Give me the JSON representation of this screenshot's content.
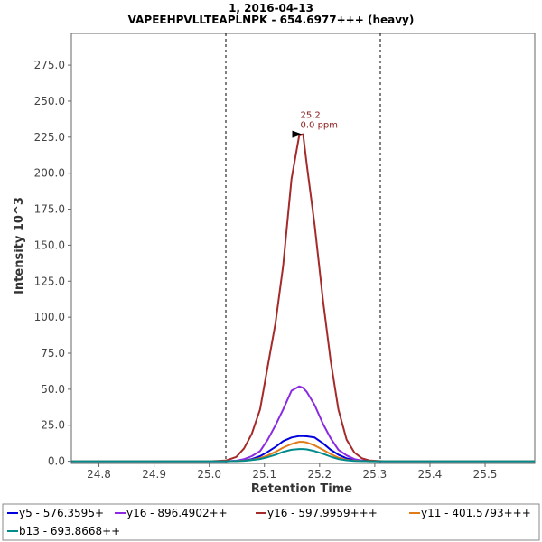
{
  "chart_data": {
    "type": "line",
    "title": "1, 2016-04-13",
    "subtitle": "VAPEEHPVLLTEAPLNPK - 654.6977+++ (heavy)",
    "xlabel": "Retention Time",
    "ylabel": "Intensity 10^3",
    "xlim": [
      24.75,
      25.59
    ],
    "ylim": [
      -1.5,
      297
    ],
    "x_ticks": [
      "24.8",
      "24.9",
      "25.0",
      "25.1",
      "25.2",
      "25.3",
      "25.4",
      "25.5"
    ],
    "x_tick_values": [
      24.8,
      24.9,
      25.0,
      25.1,
      25.2,
      25.3,
      25.4,
      25.5
    ],
    "y_ticks": [
      "0.0",
      "25.0",
      "50.0",
      "75.0",
      "100.0",
      "125.0",
      "150.0",
      "175.0",
      "200.0",
      "225.0",
      "250.0",
      "275.0"
    ],
    "y_tick_values": [
      0,
      25,
      50,
      75,
      100,
      125,
      150,
      175,
      200,
      225,
      250,
      275
    ],
    "grid": false,
    "legend_position": "bottom",
    "integration_bounds": [
      25.03,
      25.31
    ],
    "annotation": {
      "x": 25.17,
      "y": 227,
      "lines": [
        "25.2",
        "0.0 ppm"
      ],
      "color": "#8b1a1a"
    },
    "x": [
      24.75,
      24.8,
      24.85,
      24.9,
      24.95,
      25.0,
      25.03,
      25.049,
      25.063,
      25.077,
      25.092,
      25.106,
      25.12,
      25.134,
      25.149,
      25.163,
      25.17,
      25.177,
      25.191,
      25.206,
      25.22,
      25.234,
      25.249,
      25.263,
      25.277,
      25.291,
      25.306,
      25.32,
      25.35,
      25.4,
      25.45,
      25.5,
      25.59
    ],
    "series": [
      {
        "name": "y5 - 576.3595+",
        "color": "#0000dd",
        "values": [
          0,
          0,
          0,
          0,
          0,
          0,
          0,
          0.2,
          0.6,
          1.5,
          3.5,
          6.5,
          10,
          14,
          16.5,
          17.5,
          17.5,
          17.3,
          16.5,
          12.5,
          8,
          4.5,
          2,
          0.8,
          0.3,
          0.1,
          0,
          0,
          0,
          0,
          0,
          0,
          0
        ]
      },
      {
        "name": "y16 - 896.4902++",
        "color": "#8a2be2",
        "values": [
          0,
          0,
          0,
          0,
          0,
          0,
          0,
          0.4,
          1.5,
          3.5,
          7,
          15,
          25,
          36,
          49,
          52,
          51,
          48,
          39,
          26,
          16,
          8,
          4,
          1.5,
          0.5,
          0.2,
          0,
          0,
          0,
          0,
          0,
          0,
          0
        ]
      },
      {
        "name": "y16 - 597.9959+++",
        "color": "#a52a2a",
        "values": [
          0,
          0,
          0,
          0,
          0,
          0,
          0.5,
          3,
          9,
          19,
          36,
          66,
          96,
          136,
          196,
          226,
          227,
          205,
          164,
          112,
          70,
          36,
          15,
          6,
          2,
          0.5,
          0.2,
          0,
          0,
          0,
          0,
          0,
          0
        ]
      },
      {
        "name": "y11 - 401.5793+++",
        "color": "#e07b1a",
        "values": [
          0,
          0,
          0,
          0,
          0,
          0,
          0,
          0.1,
          0.4,
          1.0,
          2.2,
          4.0,
          6.5,
          9.5,
          12,
          13.5,
          13.5,
          13,
          11,
          8,
          5,
          2.5,
          1,
          0.4,
          0.1,
          0,
          0,
          0,
          0,
          0,
          0,
          0,
          0
        ]
      },
      {
        "name": "b13 - 693.8668++",
        "color": "#008b8b",
        "values": [
          0,
          0,
          0,
          0,
          0,
          0,
          0,
          0.1,
          0.3,
          0.8,
          1.6,
          2.8,
          4.5,
          6.5,
          8,
          8.5,
          8.5,
          8.2,
          7,
          5.2,
          3.2,
          1.6,
          0.7,
          0.2,
          0.1,
          0,
          0,
          0,
          0,
          0,
          0,
          0,
          0
        ]
      }
    ]
  }
}
